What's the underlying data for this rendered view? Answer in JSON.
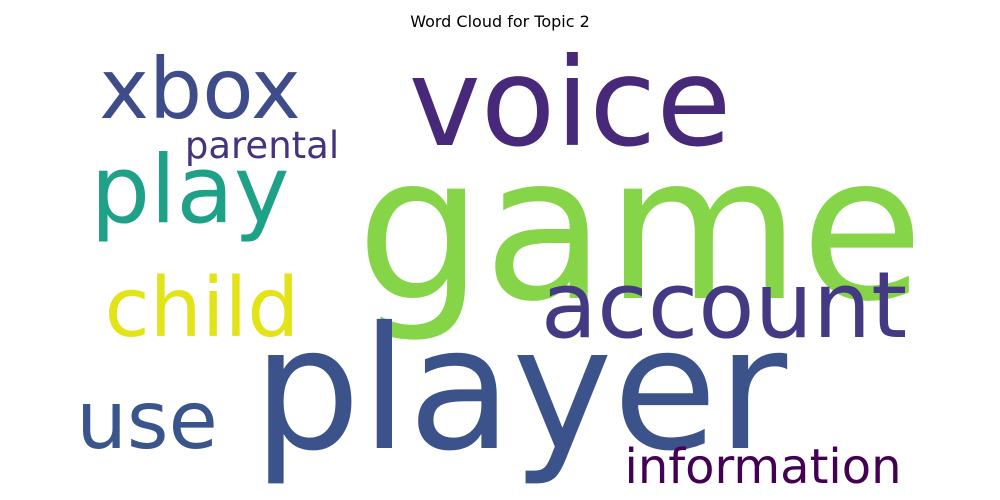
{
  "title": "Word Cloud for Topic 2",
  "words": [
    {
      "text": "game",
      "color": "#86d549"
    },
    {
      "text": "player",
      "color": "#3b528b"
    },
    {
      "text": "voice",
      "color": "#482878"
    },
    {
      "text": "xbox",
      "color": "#3e4c8a"
    },
    {
      "text": "play",
      "color": "#1fa187"
    },
    {
      "text": "child",
      "color": "#e2e418"
    },
    {
      "text": "account",
      "color": "#443a83"
    },
    {
      "text": "use",
      "color": "#3a548c"
    },
    {
      "text": "information",
      "color": "#440154"
    },
    {
      "text": "parental",
      "color": "#46337e"
    }
  ]
}
